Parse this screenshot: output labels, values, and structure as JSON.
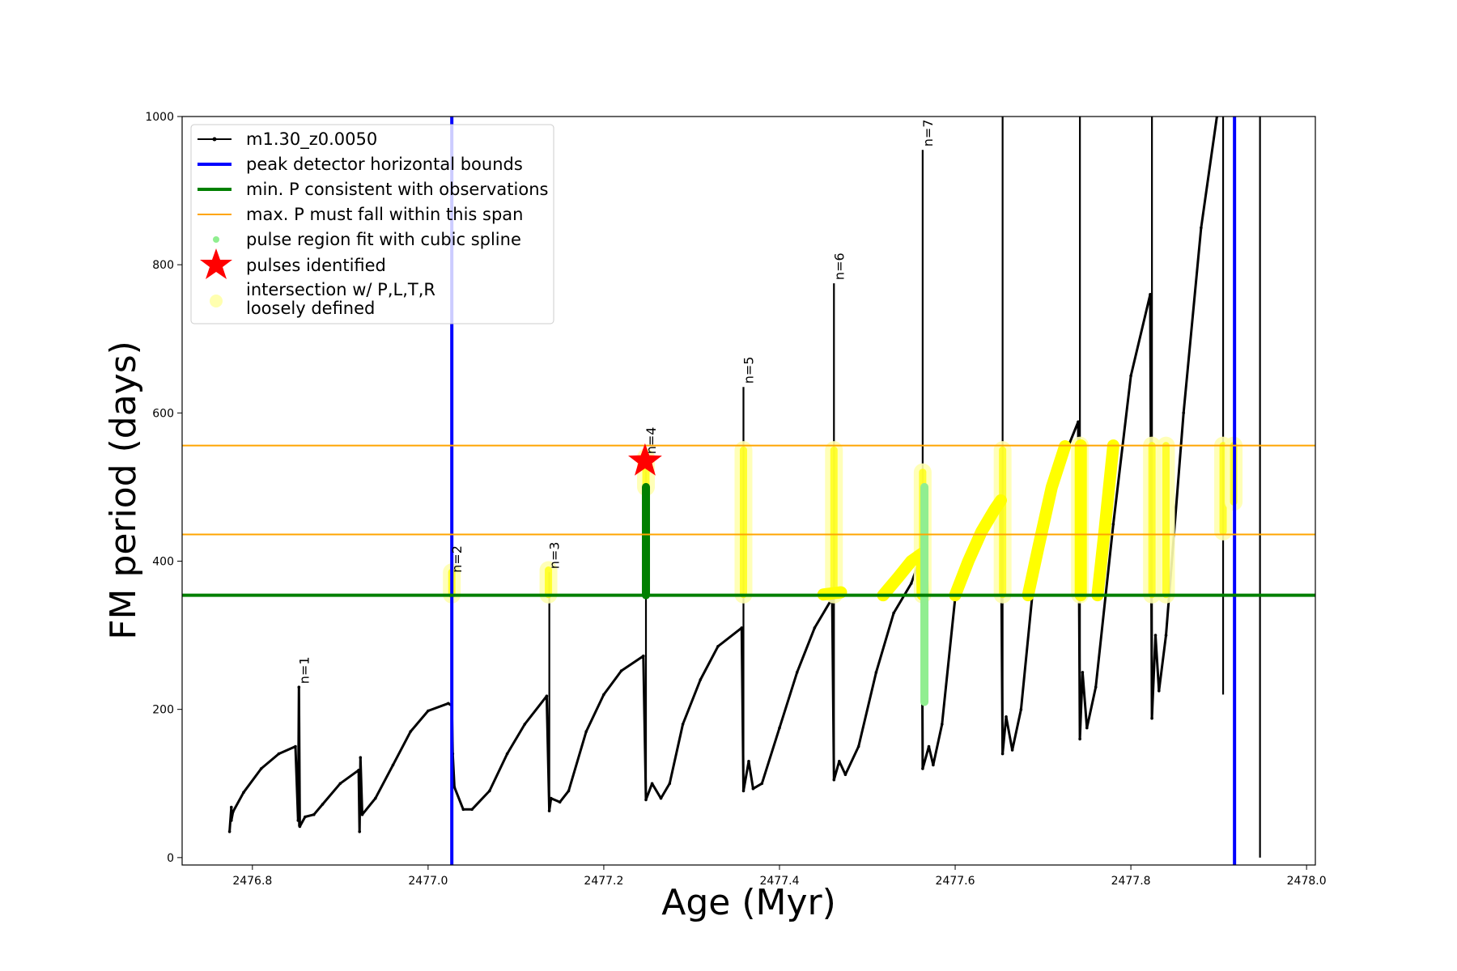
{
  "chart_data": {
    "type": "line",
    "xlabel": "Age (Myr)",
    "ylabel": "FM period (days)",
    "xlim": [
      2476.72,
      2478.01
    ],
    "ylim": [
      -10,
      1000
    ],
    "xticks": [
      2476.8,
      2477.0,
      2477.2,
      2477.4,
      2477.6,
      2477.8,
      2478.0
    ],
    "xtick_labels": [
      "2476.8",
      "2477.0",
      "2477.2",
      "2477.4",
      "2477.6",
      "2477.8",
      "2478.0"
    ],
    "yticks": [
      0,
      200,
      400,
      600,
      800,
      1000
    ],
    "ytick_labels": [
      "0",
      "200",
      "400",
      "600",
      "800",
      "1000"
    ],
    "grid": false,
    "legend_position": "top-left",
    "legend": [
      {
        "key": "track",
        "label": "m1.30_z0.0050",
        "color": "#000000"
      },
      {
        "key": "bounds",
        "label": "peak detector horizontal bounds",
        "color": "#0000ff"
      },
      {
        "key": "minp",
        "label": "min. P consistent with observations",
        "color": "#008000"
      },
      {
        "key": "maxp",
        "label": "max. P must fall within this span",
        "color": "#ffa500"
      },
      {
        "key": "spline",
        "label": "pulse region fit with cubic spline",
        "color": "#90ee90"
      },
      {
        "key": "pulses",
        "label": "pulses identified",
        "color": "#ff0000"
      },
      {
        "key": "intersect",
        "label_lines": [
          "intersection w/ P,L,T,R",
          "loosely defined"
        ],
        "color": "#ffffb0"
      }
    ],
    "vertical_lines": [
      2477.027,
      2477.918
    ],
    "min_period_line": 354,
    "max_period_span": [
      436,
      556
    ],
    "series": [
      {
        "name": "m1.30_z0.0050",
        "color": "#000000",
        "points": [
          [
            2476.774,
            35
          ],
          [
            2476.776,
            68
          ],
          [
            2476.776,
            50
          ],
          [
            2476.778,
            62
          ],
          [
            2476.79,
            88
          ],
          [
            2476.81,
            120
          ],
          [
            2476.83,
            140
          ],
          [
            2476.849,
            150
          ],
          [
            2476.852,
            50
          ],
          [
            2476.853,
            230
          ],
          [
            2476.854,
            42
          ],
          [
            2476.86,
            55
          ],
          [
            2476.87,
            58
          ],
          [
            2476.88,
            72
          ],
          [
            2476.9,
            100
          ],
          [
            2476.921,
            118
          ],
          [
            2476.922,
            35
          ],
          [
            2476.923,
            135
          ],
          [
            2476.925,
            58
          ],
          [
            2476.94,
            80
          ],
          [
            2476.96,
            125
          ],
          [
            2476.98,
            170
          ],
          [
            2477.0,
            198
          ],
          [
            2477.023,
            208
          ],
          [
            2477.027,
            205
          ],
          [
            2477.028,
            140
          ],
          [
            2477.03,
            95
          ],
          [
            2477.04,
            65
          ],
          [
            2477.05,
            65
          ],
          [
            2477.07,
            90
          ],
          [
            2477.09,
            140
          ],
          [
            2477.11,
            180
          ],
          [
            2477.135,
            218
          ],
          [
            2477.138,
            63
          ],
          [
            2477.14,
            80
          ],
          [
            2477.15,
            75
          ],
          [
            2477.16,
            90
          ],
          [
            2477.18,
            170
          ],
          [
            2477.2,
            220
          ],
          [
            2477.22,
            252
          ],
          [
            2477.245,
            272
          ],
          [
            2477.248,
            78
          ],
          [
            2477.255,
            100
          ],
          [
            2477.265,
            80
          ],
          [
            2477.275,
            100
          ],
          [
            2477.29,
            180
          ],
          [
            2477.31,
            240
          ],
          [
            2477.33,
            285
          ],
          [
            2477.357,
            310
          ],
          [
            2477.359,
            90
          ],
          [
            2477.365,
            130
          ],
          [
            2477.37,
            93
          ],
          [
            2477.38,
            100
          ],
          [
            2477.4,
            175
          ],
          [
            2477.42,
            250
          ],
          [
            2477.44,
            310
          ],
          [
            2477.46,
            350
          ],
          [
            2477.462,
            105
          ],
          [
            2477.468,
            130
          ],
          [
            2477.475,
            112
          ],
          [
            2477.49,
            150
          ],
          [
            2477.51,
            250
          ],
          [
            2477.53,
            330
          ],
          [
            2477.55,
            370
          ],
          [
            2477.562,
            410
          ],
          [
            2477.563,
            120
          ],
          [
            2477.57,
            150
          ],
          [
            2477.575,
            125
          ],
          [
            2477.585,
            180
          ],
          [
            2477.6,
            350
          ],
          [
            2477.625,
            430
          ],
          [
            2477.652,
            480
          ],
          [
            2477.654,
            140
          ],
          [
            2477.658,
            190
          ],
          [
            2477.665,
            145
          ],
          [
            2477.675,
            200
          ],
          [
            2477.69,
            380
          ],
          [
            2477.71,
            500
          ],
          [
            2477.74,
            588
          ],
          [
            2477.742,
            160
          ],
          [
            2477.745,
            250
          ],
          [
            2477.75,
            175
          ],
          [
            2477.76,
            230
          ],
          [
            2477.78,
            450
          ],
          [
            2477.8,
            650
          ],
          [
            2477.822,
            760
          ],
          [
            2477.824,
            188
          ],
          [
            2477.828,
            300
          ],
          [
            2477.832,
            225
          ],
          [
            2477.84,
            300
          ],
          [
            2477.86,
            600
          ],
          [
            2477.88,
            850
          ],
          [
            2477.898,
            1000
          ]
        ]
      }
    ],
    "spikes": [
      {
        "x": 2476.853,
        "low": 42,
        "high": 230,
        "label": "n=1"
      },
      {
        "x": 2477.027,
        "low": 95,
        "high": 380,
        "label": "n=2"
      },
      {
        "x": 2477.138,
        "low": 63,
        "high": 385,
        "label": "n=3"
      },
      {
        "x": 2477.248,
        "low": 78,
        "high": 540,
        "label": "n=4"
      },
      {
        "x": 2477.359,
        "low": 90,
        "high": 635,
        "label": "n=5"
      },
      {
        "x": 2477.462,
        "low": 105,
        "high": 775,
        "label": "n=6"
      },
      {
        "x": 2477.563,
        "low": 120,
        "high": 955,
        "label": "n=7"
      },
      {
        "x": 2477.654,
        "low": 140,
        "high": 1000,
        "label": ""
      },
      {
        "x": 2477.742,
        "low": 160,
        "high": 1000,
        "label": ""
      },
      {
        "x": 2477.824,
        "low": 188,
        "high": 1000,
        "label": ""
      },
      {
        "x": 2477.905,
        "low": 220,
        "high": 1000,
        "label": ""
      },
      {
        "x": 2477.947,
        "low": 0,
        "high": 1000,
        "label": ""
      }
    ],
    "pulse_identified": {
      "x": 2477.247,
      "y": 535
    },
    "spline_fit_regions": [
      {
        "x": 2477.248,
        "y_from": 354,
        "y_to": 500,
        "color": "#008000"
      },
      {
        "x": 2477.565,
        "y_from": 210,
        "y_to": 500,
        "color": "#90ee90"
      }
    ],
    "intersection_regions": [
      {
        "x": 2477.027,
        "y_from": 355,
        "y_to": 385
      },
      {
        "x": 2477.137,
        "y_from": 355,
        "y_to": 388
      },
      {
        "x": 2477.248,
        "y_from": 500,
        "y_to": 540
      },
      {
        "x": 2477.359,
        "y_from": 355,
        "y_to": 550
      },
      {
        "x": 2477.462,
        "y_from": 355,
        "y_to": 550
      },
      {
        "x": 2477.563,
        "y_from": 355,
        "y_to": 520
      },
      {
        "x": 2477.654,
        "y_from": 355,
        "y_to": 550
      },
      {
        "x": 2477.742,
        "y_from": 355,
        "y_to": 556
      },
      {
        "x": 2477.824,
        "y_from": 355,
        "y_to": 556
      },
      {
        "x": 2477.84,
        "y_from": 355,
        "y_to": 556
      },
      {
        "x": 2477.905,
        "y_from": 440,
        "y_to": 556
      },
      {
        "x": 2477.917,
        "y_from": 480,
        "y_to": 556
      }
    ],
    "intersection_curves": [
      [
        [
          2477.45,
          355
        ],
        [
          2477.47,
          358
        ]
      ],
      [
        [
          2477.518,
          354
        ],
        [
          2477.535,
          378
        ],
        [
          2477.55,
          400
        ],
        [
          2477.562,
          410
        ],
        [
          2477.563,
          355
        ]
      ],
      [
        [
          2477.6,
          354
        ],
        [
          2477.615,
          400
        ],
        [
          2477.63,
          440
        ],
        [
          2477.645,
          470
        ],
        [
          2477.652,
          482
        ]
      ],
      [
        [
          2477.683,
          354
        ],
        [
          2477.695,
          420
        ],
        [
          2477.71,
          500
        ],
        [
          2477.725,
          555
        ]
      ],
      [
        [
          2477.743,
          354
        ],
        [
          2477.743,
          556
        ]
      ],
      [
        [
          2477.762,
          354
        ],
        [
          2477.77,
          440
        ],
        [
          2477.78,
          556
        ]
      ]
    ]
  }
}
